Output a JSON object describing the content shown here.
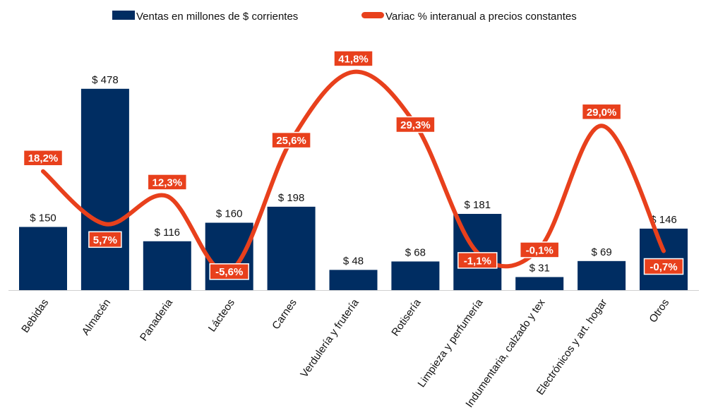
{
  "chart_data": {
    "type": "bar",
    "title": "",
    "xlabel": "",
    "ylabel": "",
    "categories": [
      "Bebidas",
      "Almacén",
      "Panaderia",
      "Lácteos",
      "Carnes",
      "Verdulería y frutería",
      "Rotisería",
      "Limpieza y perfumería",
      "Indumentaria, calzado y tex",
      "Electrónicos y art. hogar",
      "Otros"
    ],
    "series": [
      {
        "name": "Ventas en millones de $ corrientes",
        "type": "bar",
        "axis": "left",
        "color": "#002D62",
        "values": [
          150,
          478,
          116,
          160,
          198,
          48,
          68,
          181,
          31,
          69,
          146
        ],
        "labels": [
          "$ 150",
          "$ 478",
          "$ 116",
          "$ 160",
          "$ 198",
          "$ 48",
          "$ 68",
          "$ 181",
          "$ 31",
          "$ 69",
          "$ 146"
        ]
      },
      {
        "name": "Variac % interanual a precios constantes",
        "type": "line",
        "axis": "right",
        "smooth": true,
        "color": "#E8401C",
        "values": [
          18.2,
          5.7,
          12.3,
          -5.6,
          25.6,
          41.8,
          29.3,
          -1.1,
          -0.1,
          29.0,
          -0.7
        ],
        "labels": [
          "18,2%",
          "5,7%",
          "12,3%",
          "-5,6%",
          "25,6%",
          "41,8%",
          "29,3%",
          "-1,1%",
          "-0,1%",
          "29,0%",
          "-0,7%"
        ]
      }
    ],
    "ylim": [
      0,
      600
    ],
    "y2lim": [
      -10,
      50
    ],
    "grid": false,
    "legend": "top-center"
  }
}
